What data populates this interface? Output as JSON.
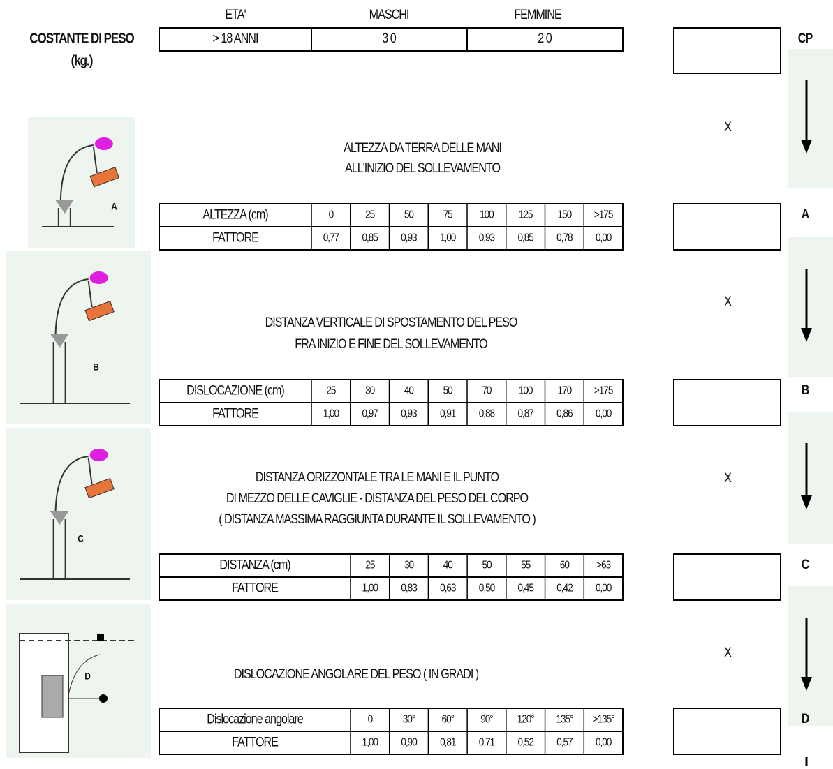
{
  "header": {
    "age_label": "ETA'",
    "male_label": "MASCHI",
    "female_label": "FEMMINE",
    "constant_label": [
      "COSTANTE DI PESO",
      "(kg.)"
    ],
    "row": [
      "> 18 ANNI",
      "3 0",
      "2 0"
    ],
    "result_label": "CP"
  },
  "multiplier": "X",
  "sections": [
    {
      "title": [
        "ALTEZZA DA TERRA DELLE MANI",
        "ALL'INIZIO DEL SOLLEVAMENTO"
      ],
      "table": {
        "header": [
          "ALTEZZA (cm)",
          "0",
          "25",
          "50",
          "75",
          "100",
          "125",
          "150",
          ">175"
        ],
        "factors": [
          "FATTORE",
          "0,77",
          "0,85",
          "0,93",
          "1,00",
          "0,93",
          "0,85",
          "0,78",
          "0,00"
        ]
      },
      "result_label": "A",
      "figure_label": "A"
    },
    {
      "title": [
        "DISTANZA VERTICALE DI SPOSTAMENTO DEL PESO",
        "FRA INIZIO E FINE DEL SOLLEVAMENTO"
      ],
      "table": {
        "header": [
          "DISLOCAZIONE (cm)",
          "25",
          "30",
          "40",
          "50",
          "70",
          "100",
          "170",
          ">175"
        ],
        "factors": [
          "FATTORE",
          "1,00",
          "0,97",
          "0,93",
          "0,91",
          "0,88",
          "0,87",
          "0,86",
          "0,00"
        ]
      },
      "result_label": "B",
      "figure_label": "B"
    },
    {
      "title": [
        "DISTANZA ORIZZONTALE TRA LE MANI E IL PUNTO",
        "DI MEZZO DELLE CAVIGLIE - DISTANZA DEL PESO DEL CORPO",
        "( DISTANZA MASSIMA RAGGIUNTA DURANTE IL SOLLEVAMENTO )"
      ],
      "table": {
        "header": [
          "DISTANZA (cm)",
          "25",
          "30",
          "40",
          "50",
          "55",
          "60",
          ">63"
        ],
        "factors": [
          "FATTORE",
          "1,00",
          "0,83",
          "0,63",
          "0,50",
          "0,45",
          "0,42",
          "0,00"
        ]
      },
      "result_label": "C",
      "figure_label": "C"
    },
    {
      "title": [
        "DISLOCAZIONE ANGOLARE DEL PESO ( IN GRADI )"
      ],
      "table": {
        "header": [
          "Dislocazione angolare",
          "0",
          "30°",
          "60°",
          "90°",
          "120°",
          "135°",
          ">135°"
        ],
        "factors": [
          "FATTORE",
          "1,00",
          "0,90",
          "0,81",
          "0,71",
          "0,52",
          "0,57",
          "0,00"
        ]
      },
      "result_label": "D",
      "figure_label": "D"
    }
  ]
}
